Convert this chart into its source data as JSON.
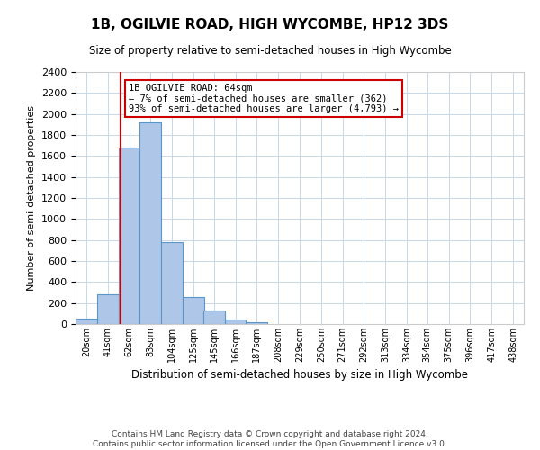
{
  "title": "1B, OGILVIE ROAD, HIGH WYCOMBE, HP12 3DS",
  "subtitle": "Size of property relative to semi-detached houses in High Wycombe",
  "xlabel": "Distribution of semi-detached houses by size in High Wycombe",
  "ylabel": "Number of semi-detached properties",
  "bin_labels": [
    "20sqm",
    "41sqm",
    "62sqm",
    "83sqm",
    "104sqm",
    "125sqm",
    "145sqm",
    "166sqm",
    "187sqm",
    "208sqm",
    "229sqm",
    "250sqm",
    "271sqm",
    "292sqm",
    "313sqm",
    "334sqm",
    "354sqm",
    "375sqm",
    "396sqm",
    "417sqm",
    "438sqm"
  ],
  "bin_edges": [
    20,
    41,
    62,
    83,
    104,
    125,
    145,
    166,
    187,
    208,
    229,
    250,
    271,
    292,
    313,
    334,
    354,
    375,
    396,
    417,
    438
  ],
  "bar_heights": [
    50,
    280,
    1680,
    1920,
    780,
    260,
    130,
    40,
    20,
    0,
    0,
    0,
    0,
    0,
    0,
    0,
    0,
    0,
    0,
    0
  ],
  "bar_color": "#aec6e8",
  "bar_edge_color": "#5a96c8",
  "property_size": 64,
  "red_line_color": "#cc0000",
  "annotation_line1": "1B OGILVIE ROAD: 64sqm",
  "annotation_line2": "← 7% of semi-detached houses are smaller (362)",
  "annotation_line3": "93% of semi-detached houses are larger (4,793) →",
  "annotation_box_color": "#ffffff",
  "annotation_border_color": "#cc0000",
  "ylim": [
    0,
    2400
  ],
  "yticks": [
    0,
    200,
    400,
    600,
    800,
    1000,
    1200,
    1400,
    1600,
    1800,
    2000,
    2200,
    2400
  ],
  "footer_line1": "Contains HM Land Registry data © Crown copyright and database right 2024.",
  "footer_line2": "Contains public sector information licensed under the Open Government Licence v3.0.",
  "background_color": "#ffffff",
  "grid_color": "#c8d8e8"
}
